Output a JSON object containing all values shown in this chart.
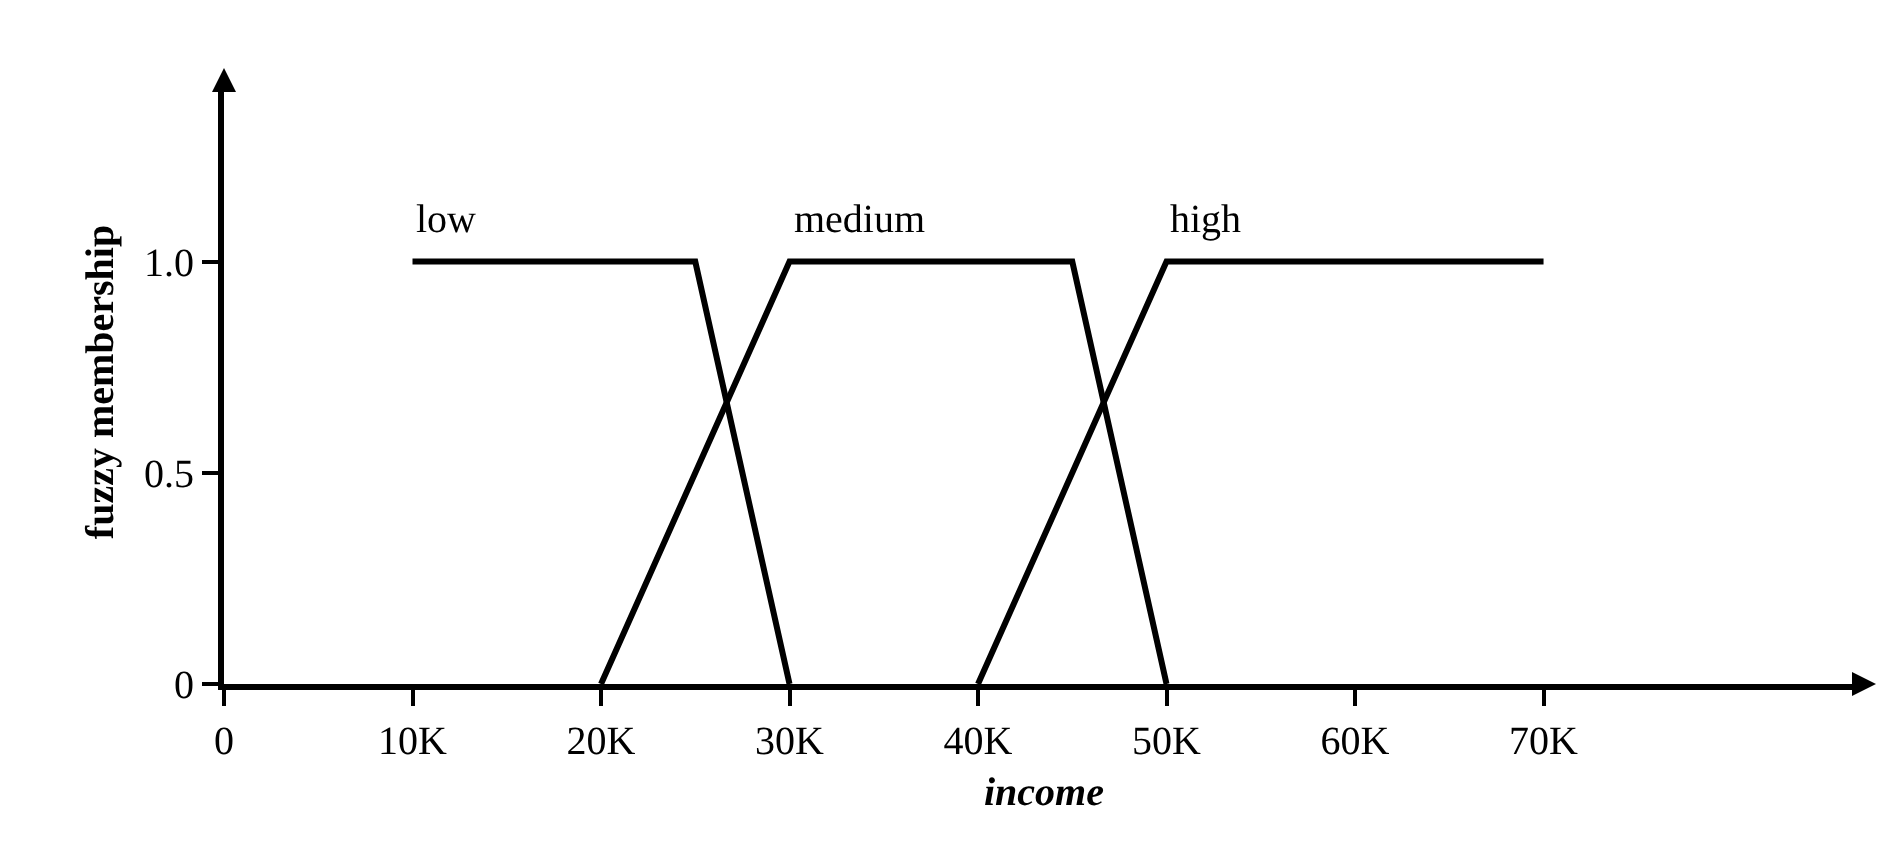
{
  "chart_data": {
    "type": "line",
    "xlabel": "income",
    "ylabel": "fuzzy membership",
    "series": [
      {
        "name": "low",
        "color": "#000000",
        "x": [
          10000,
          25000,
          30000
        ],
        "values": [
          1.0,
          1.0,
          0
        ]
      },
      {
        "name": "medium",
        "color": "#000000",
        "x": [
          20000,
          30000,
          45000,
          50000
        ],
        "values": [
          0,
          1.0,
          1.0,
          0
        ]
      },
      {
        "name": "high",
        "color": "#000000",
        "x": [
          40000,
          50000,
          70000
        ],
        "values": [
          0,
          1.0,
          1.0
        ]
      }
    ],
    "xlim": [
      0,
      87000
    ],
    "ylim": [
      0,
      1.43
    ],
    "xticks": [
      0,
      {
        "value": 10000,
        "label": "10K"
      },
      {
        "value": 20000,
        "label": "20K"
      },
      {
        "value": 30000,
        "label": "30K"
      },
      {
        "value": 40000,
        "label": "40K"
      },
      {
        "value": 50000,
        "label": "50K"
      },
      {
        "value": 60000,
        "label": "60K"
      },
      {
        "value": 70000,
        "label": "70K"
      }
    ],
    "yticks": [
      0,
      0.5,
      {
        "value": 1.0,
        "label": "1.0"
      }
    ],
    "legend": false,
    "marker": "none",
    "line_style": "solid"
  }
}
